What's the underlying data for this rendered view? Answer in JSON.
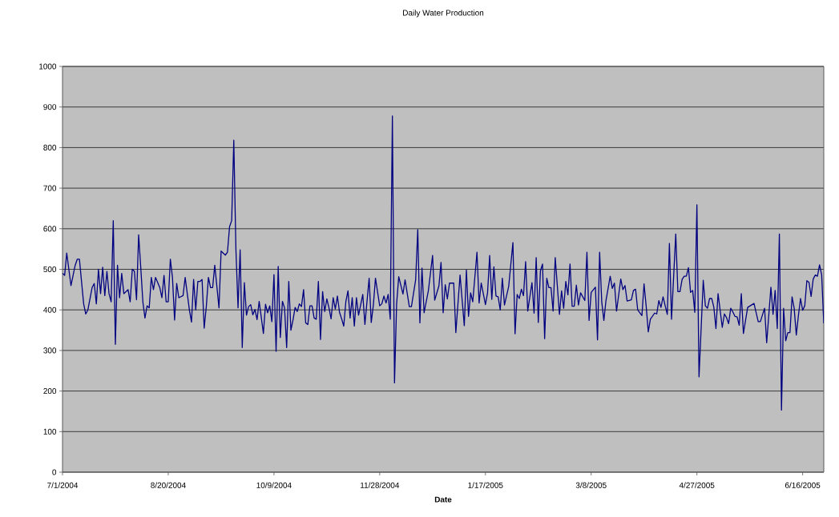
{
  "chart_data": {
    "type": "line",
    "title": "Daily Water Production",
    "xlabel": "Date",
    "xlim": [
      "2004-07-01",
      "2005-06-26"
    ],
    "xticks": [
      {
        "value": "2004-07-01",
        "label": "7/1/2004"
      },
      {
        "value": "2004-08-20",
        "label": "8/20/2004"
      },
      {
        "value": "2004-10-09",
        "label": "10/9/2004"
      },
      {
        "value": "2004-11-28",
        "label": "11/28/2004"
      },
      {
        "value": "2005-01-17",
        "label": "1/17/2005"
      },
      {
        "value": "2005-03-08",
        "label": "3/8/2005"
      },
      {
        "value": "2005-04-27",
        "label": "4/27/2005"
      },
      {
        "value": "2005-06-16",
        "label": "6/16/2005"
      }
    ],
    "ylim": [
      0,
      1000
    ],
    "yticks": [
      0,
      100,
      200,
      300,
      400,
      500,
      600,
      700,
      800,
      900,
      1000
    ],
    "grid": "y",
    "marker": "none",
    "line_style": "solid",
    "series": [
      {
        "color": "#000080",
        "x": [
          "2004-07-01",
          "2004-07-02",
          "2004-07-03",
          "2004-07-05",
          "2004-07-07",
          "2004-07-08",
          "2004-07-09",
          "2004-07-11",
          "2004-07-12",
          "2004-07-13",
          "2004-07-15",
          "2004-07-16",
          "2004-07-17",
          "2004-07-18",
          "2004-07-19",
          "2004-07-20",
          "2004-07-21",
          "2004-07-22",
          "2004-07-23",
          "2004-07-24",
          "2004-07-25",
          "2004-07-26",
          "2004-07-27",
          "2004-07-28",
          "2004-07-29",
          "2004-07-30",
          "2004-08-01",
          "2004-08-02",
          "2004-08-03",
          "2004-08-04",
          "2004-08-05",
          "2004-08-06",
          "2004-08-07",
          "2004-08-08",
          "2004-08-09",
          "2004-08-10",
          "2004-08-11",
          "2004-08-12",
          "2004-08-13",
          "2004-08-14",
          "2004-08-16",
          "2004-08-17",
          "2004-08-18",
          "2004-08-19",
          "2004-08-20",
          "2004-08-21",
          "2004-08-22",
          "2004-08-23",
          "2004-08-24",
          "2004-08-25",
          "2004-08-27",
          "2004-08-28",
          "2004-08-30",
          "2004-08-31",
          "2004-09-01",
          "2004-09-02",
          "2004-09-03",
          "2004-09-04",
          "2004-09-05",
          "2004-09-06",
          "2004-09-07",
          "2004-09-08",
          "2004-09-09",
          "2004-09-10",
          "2004-09-11",
          "2004-09-13",
          "2004-09-14",
          "2004-09-16",
          "2004-09-17",
          "2004-09-18",
          "2004-09-19",
          "2004-09-20",
          "2004-09-21",
          "2004-09-22",
          "2004-09-23",
          "2004-09-24",
          "2004-09-25",
          "2004-09-26",
          "2004-09-27",
          "2004-09-28",
          "2004-09-29",
          "2004-09-30",
          "2004-10-01",
          "2004-10-02",
          "2004-10-04",
          "2004-10-05",
          "2004-10-06",
          "2004-10-07",
          "2004-10-08",
          "2004-10-09",
          "2004-10-10",
          "2004-10-11",
          "2004-10-12",
          "2004-10-13",
          "2004-10-14",
          "2004-10-15",
          "2004-10-16",
          "2004-10-17",
          "2004-10-18",
          "2004-10-19",
          "2004-10-20",
          "2004-10-21",
          "2004-10-22",
          "2004-10-23",
          "2004-10-24",
          "2004-10-25",
          "2004-10-26",
          "2004-10-27",
          "2004-10-28",
          "2004-10-29",
          "2004-10-30",
          "2004-10-31",
          "2004-11-01",
          "2004-11-02",
          "2004-11-03",
          "2004-11-04",
          "2004-11-05",
          "2004-11-06",
          "2004-11-07",
          "2004-11-08",
          "2004-11-09",
          "2004-11-10",
          "2004-11-11",
          "2004-11-12",
          "2004-11-13",
          "2004-11-14",
          "2004-11-15",
          "2004-11-16",
          "2004-11-17",
          "2004-11-18",
          "2004-11-20",
          "2004-11-21",
          "2004-11-23",
          "2004-11-24",
          "2004-11-25",
          "2004-11-26",
          "2004-11-28",
          "2004-11-29",
          "2004-11-30",
          "2004-12-01",
          "2004-12-02",
          "2004-12-03",
          "2004-12-04",
          "2004-12-05",
          "2004-12-06",
          "2004-12-07",
          "2004-12-09",
          "2004-12-10",
          "2004-12-12",
          "2004-12-13",
          "2004-12-14",
          "2004-12-15",
          "2004-12-16",
          "2004-12-17",
          "2004-12-18",
          "2004-12-19",
          "2004-12-21",
          "2004-12-23",
          "2004-12-24",
          "2004-12-26",
          "2004-12-27",
          "2004-12-28",
          "2004-12-29",
          "2004-12-30",
          "2004-12-31",
          "2005-01-02",
          "2005-01-03",
          "2005-01-05",
          "2005-01-07",
          "2005-01-08",
          "2005-01-09",
          "2005-01-10",
          "2005-01-11",
          "2005-01-13",
          "2005-01-14",
          "2005-01-15",
          "2005-01-17",
          "2005-01-18",
          "2005-01-19",
          "2005-01-20",
          "2005-01-21",
          "2005-01-22",
          "2005-01-23",
          "2005-01-24",
          "2005-01-25",
          "2005-01-26",
          "2005-01-28",
          "2005-01-30",
          "2005-01-31",
          "2005-02-01",
          "2005-02-02",
          "2005-02-03",
          "2005-02-04",
          "2005-02-05",
          "2005-02-06",
          "2005-02-08",
          "2005-02-09",
          "2005-02-10",
          "2005-02-11",
          "2005-02-12",
          "2005-02-13",
          "2005-02-14",
          "2005-02-15",
          "2005-02-16",
          "2005-02-17",
          "2005-02-18",
          "2005-02-19",
          "2005-02-21",
          "2005-02-22",
          "2005-02-23",
          "2005-02-24",
          "2005-02-25",
          "2005-02-26",
          "2005-02-27",
          "2005-02-28",
          "2005-03-01",
          "2005-03-02",
          "2005-03-03",
          "2005-03-05",
          "2005-03-06",
          "2005-03-07",
          "2005-03-08",
          "2005-03-10",
          "2005-03-11",
          "2005-03-12",
          "2005-03-13",
          "2005-03-14",
          "2005-03-15",
          "2005-03-17",
          "2005-03-18",
          "2005-03-19",
          "2005-03-20",
          "2005-03-22",
          "2005-03-23",
          "2005-03-24",
          "2005-03-25",
          "2005-03-27",
          "2005-03-28",
          "2005-03-29",
          "2005-03-30",
          "2005-04-01",
          "2005-04-02",
          "2005-04-03",
          "2005-04-04",
          "2005-04-05",
          "2005-04-07",
          "2005-04-08",
          "2005-04-09",
          "2005-04-10",
          "2005-04-11",
          "2005-04-12",
          "2005-04-13",
          "2005-04-14",
          "2005-04-15",
          "2005-04-17",
          "2005-04-18",
          "2005-04-19",
          "2005-04-20",
          "2005-04-21",
          "2005-04-22",
          "2005-04-23",
          "2005-04-24",
          "2005-04-25",
          "2005-04-26",
          "2005-04-27",
          "2005-04-28",
          "2005-04-30",
          "2005-05-01",
          "2005-05-02",
          "2005-05-03",
          "2005-05-04",
          "2005-05-05",
          "2005-05-06",
          "2005-05-07",
          "2005-05-09",
          "2005-05-10",
          "2005-05-11",
          "2005-05-12",
          "2005-05-13",
          "2005-05-14",
          "2005-05-15",
          "2005-05-16",
          "2005-05-17",
          "2005-05-18",
          "2005-05-19",
          "2005-05-21",
          "2005-05-24",
          "2005-05-26",
          "2005-05-27",
          "2005-05-29",
          "2005-05-30",
          "2005-06-01",
          "2005-06-02",
          "2005-06-03",
          "2005-06-04",
          "2005-06-05",
          "2005-06-06",
          "2005-06-07",
          "2005-06-08",
          "2005-06-09",
          "2005-06-10",
          "2005-06-11",
          "2005-06-12",
          "2005-06-13",
          "2005-06-14",
          "2005-06-15",
          "2005-06-16",
          "2005-06-17",
          "2005-06-18",
          "2005-06-19",
          "2005-06-20",
          "2005-06-21",
          "2005-06-22",
          "2005-06-23",
          "2005-06-24",
          "2005-06-25",
          "2005-06-26"
        ],
        "values": [
          490,
          485,
          540,
          460,
          510,
          525,
          525,
          415,
          390,
          400,
          455,
          465,
          415,
          500,
          440,
          505,
          435,
          495,
          440,
          420,
          620,
          315,
          510,
          430,
          490,
          440,
          450,
          420,
          500,
          495,
          425,
          585,
          505,
          420,
          380,
          410,
          405,
          480,
          450,
          480,
          455,
          430,
          485,
          420,
          420,
          525,
          480,
          375,
          465,
          430,
          435,
          480,
          400,
          370,
          475,
          400,
          470,
          470,
          475,
          355,
          408,
          480,
          455,
          455,
          510,
          405,
          545,
          535,
          542,
          605,
          620,
          818,
          550,
          405,
          548,
          307,
          467,
          387,
          408,
          413,
          388,
          401,
          376,
          421,
          342,
          414,
          393,
          410,
          371,
          487,
          298,
          507,
          332,
          421,
          405,
          307,
          470,
          350,
          375,
          406,
          396,
          415,
          408,
          450,
          368,
          364,
          410,
          410,
          380,
          377,
          470,
          327,
          445,
          396,
          427,
          405,
          378,
          430,
          402,
          434,
          394,
          378,
          360,
          421,
          447,
          380,
          430,
          360,
          430,
          387,
          438,
          364,
          478,
          369,
          412,
          478,
          410,
          415,
          434,
          417,
          438,
          377,
          878,
          220,
          415,
          482,
          439,
          474,
          408,
          408,
          441,
          474,
          598,
          368,
          503,
          393,
          447,
          534,
          424,
          459,
          517,
          393,
          462,
          427,
          466,
          466,
          344,
          486,
          361,
          498,
          384,
          442,
          420,
          542,
          417,
          466,
          413,
          442,
          534,
          426,
          506,
          434,
          432,
          400,
          478,
          412,
          458,
          566,
          341,
          438,
          428,
          451,
          435,
          519,
          397,
          467,
          392,
          529,
          369,
          496,
          513,
          329,
          478,
          455,
          455,
          397,
          529,
          389,
          447,
          404,
          470,
          437,
          513,
          409,
          409,
          461,
          412,
          442,
          423,
          542,
          374,
          443,
          456,
          326,
          542,
          420,
          374,
          423,
          483,
          453,
          466,
          397,
          476,
          450,
          460,
          422,
          425,
          448,
          451,
          400,
          386,
          464,
          410,
          346,
          377,
          392,
          390,
          423,
          406,
          432,
          410,
          389,
          564,
          377,
          587,
          445,
          445,
          475,
          483,
          483,
          504,
          443,
          448,
          394,
          659,
          235,
          473,
          410,
          404,
          428,
          428,
          407,
          354,
          440,
          357,
          390,
          381,
          366,
          404,
          395,
          384,
          383,
          362,
          440,
          342,
          406,
          416,
          371,
          371,
          404,
          319,
          456,
          389,
          448,
          354,
          587,
          153,
          404,
          324,
          344,
          344,
          432,
          404,
          338,
          386,
          428,
          399,
          410,
          472,
          468,
          433,
          476,
          486,
          483,
          511,
          486,
          367
        ]
      }
    ]
  }
}
